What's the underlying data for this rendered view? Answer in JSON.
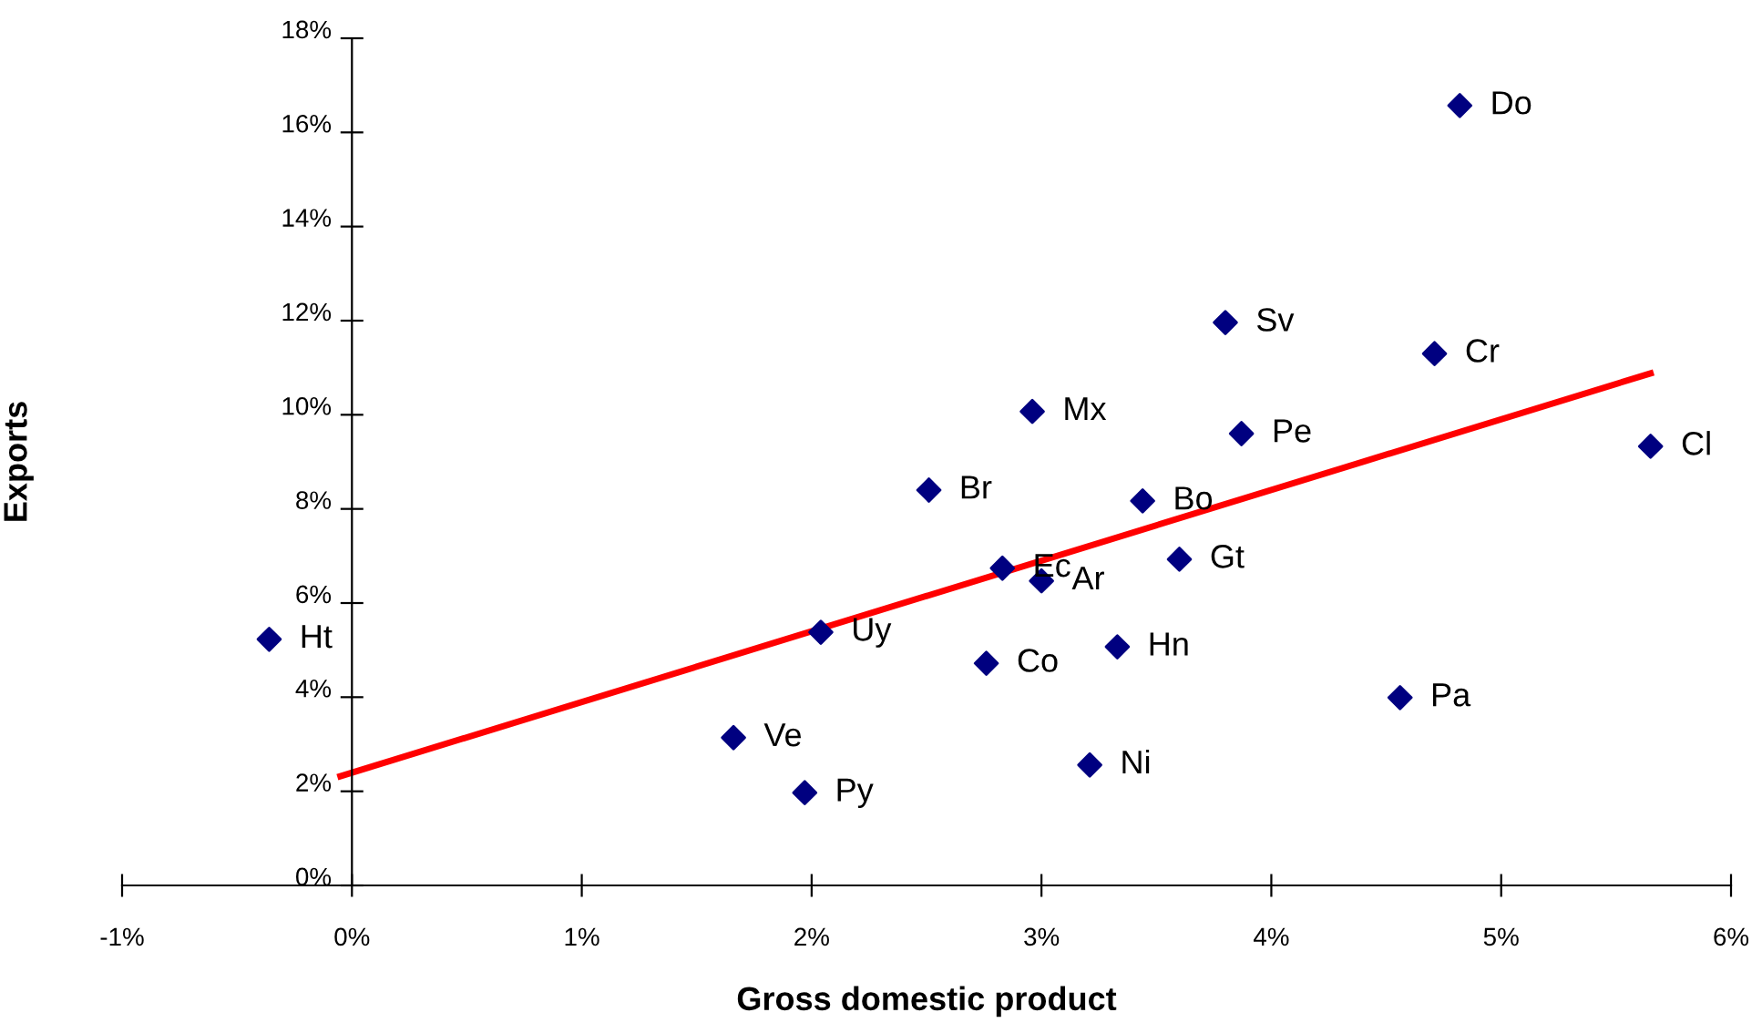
{
  "chart_data": {
    "type": "scatter",
    "xlabel": "Gross domestic product",
    "ylabel": "Exports",
    "marker": "diamond",
    "grid": false,
    "legend": false,
    "xlim": [
      -1,
      6
    ],
    "ylim": [
      0,
      18
    ],
    "xticks": [
      {
        "value": -1,
        "label": "-1%"
      },
      {
        "value": 0,
        "label": "0%"
      },
      {
        "value": 1,
        "label": "1%"
      },
      {
        "value": 2,
        "label": "2%"
      },
      {
        "value": 3,
        "label": "3%"
      },
      {
        "value": 4,
        "label": "4%"
      },
      {
        "value": 5,
        "label": "5%"
      },
      {
        "value": 6,
        "label": "6%"
      }
    ],
    "yticks": [
      {
        "value": 0,
        "label": "0%"
      },
      {
        "value": 2,
        "label": "2%"
      },
      {
        "value": 4,
        "label": "4%"
      },
      {
        "value": 6,
        "label": "6%"
      },
      {
        "value": 8,
        "label": "8%"
      },
      {
        "value": 10,
        "label": "10%"
      },
      {
        "value": 12,
        "label": "12%"
      },
      {
        "value": 14,
        "label": "14%"
      },
      {
        "value": 16,
        "label": "16%"
      },
      {
        "value": 18,
        "label": "18%"
      }
    ],
    "series": [
      {
        "type": "scatter",
        "color": "#000080",
        "x": [
          4.82,
          3.8,
          4.71,
          2.96,
          3.87,
          5.65,
          2.51,
          3.44,
          3.6,
          2.83,
          3.0,
          2.04,
          -0.36,
          3.33,
          2.76,
          4.56,
          1.66,
          3.21,
          1.97
        ],
        "values": [
          16.57,
          11.96,
          11.3,
          10.07,
          9.6,
          9.33,
          8.4,
          8.17,
          6.93,
          6.74,
          6.47,
          5.38,
          5.23,
          5.07,
          4.72,
          3.99,
          3.14,
          2.56,
          1.97
        ]
      },
      {
        "type": "line",
        "color": "#ff0000",
        "marker": "none",
        "x": [
          -0.05,
          5.65
        ],
        "values": [
          2.32,
          10.88
        ]
      }
    ],
    "annotations": [
      {
        "text": "Do",
        "x": 4.82,
        "y": 16.57
      },
      {
        "text": "Sv",
        "x": 3.8,
        "y": 11.96
      },
      {
        "text": "Cr",
        "x": 4.71,
        "y": 11.3
      },
      {
        "text": "Mx",
        "x": 2.96,
        "y": 10.07
      },
      {
        "text": "Pe",
        "x": 3.87,
        "y": 9.6
      },
      {
        "text": "Cl",
        "x": 5.65,
        "y": 9.33
      },
      {
        "text": "Br",
        "x": 2.51,
        "y": 8.4
      },
      {
        "text": "Bo",
        "x": 3.44,
        "y": 8.17
      },
      {
        "text": "Gt",
        "x": 3.6,
        "y": 6.93
      },
      {
        "text": "Ec",
        "x": 2.83,
        "y": 6.74
      },
      {
        "text": "Ar",
        "x": 3.0,
        "y": 6.47
      },
      {
        "text": "Uy",
        "x": 2.04,
        "y": 5.38
      },
      {
        "text": "Ht",
        "x": -0.36,
        "y": 5.23
      },
      {
        "text": "Hn",
        "x": 3.33,
        "y": 5.07
      },
      {
        "text": "Co",
        "x": 2.76,
        "y": 4.72
      },
      {
        "text": "Pa",
        "x": 4.56,
        "y": 3.99
      },
      {
        "text": "Ve",
        "x": 1.66,
        "y": 3.14
      },
      {
        "text": "Ni",
        "x": 3.21,
        "y": 2.56
      },
      {
        "text": "Py",
        "x": 1.97,
        "y": 1.97
      }
    ]
  }
}
